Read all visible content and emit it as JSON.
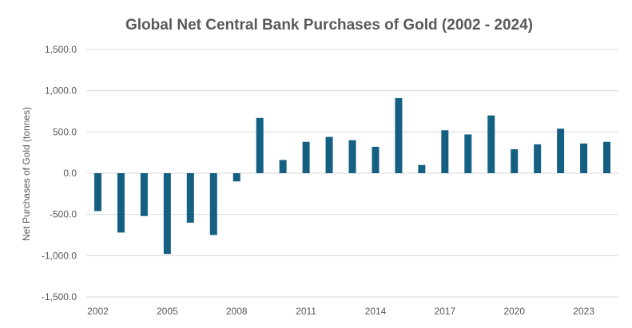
{
  "chart_data": {
    "type": "bar",
    "title": "Global Net Central Bank Purchases of Gold (2002 - 2024)",
    "xlabel": "",
    "ylabel": "Net Purchases of Gold (tonnes)",
    "ylim": [
      -1500,
      1500
    ],
    "yticks": [
      1500,
      1000,
      500,
      0,
      -500,
      -1000,
      -1500
    ],
    "ytick_labels": [
      "1,500.0",
      "1,000.0",
      "500.0",
      "0.0",
      "-500.0",
      "-1,000.0",
      "-1,500.0"
    ],
    "grid": true,
    "categories": [
      "2002",
      "2003",
      "2004",
      "2005",
      "2006",
      "2007",
      "2008",
      "2009",
      "2010",
      "2011",
      "2012",
      "2013",
      "2014",
      "2015",
      "2016",
      "2017",
      "2018",
      "2019",
      "2020",
      "2021",
      "2022",
      "2023",
      "2024"
    ],
    "xtick_labels": [
      "2002",
      "2005",
      "2008",
      "2011",
      "2014",
      "2017",
      "2020",
      "2023"
    ],
    "series": [
      {
        "name": "Net Purchases",
        "color": "#156082",
        "values": [
          -460,
          -720,
          -520,
          -980,
          -600,
          -750,
          -100,
          670,
          160,
          380,
          440,
          400,
          320,
          910,
          100,
          520,
          470,
          700,
          290,
          350,
          540,
          360,
          380
        ]
      }
    ]
  }
}
